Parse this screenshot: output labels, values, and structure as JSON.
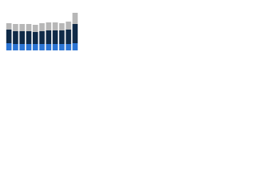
{
  "chart_data": {
    "type": "stacked_bar",
    "categories": [
      null,
      null,
      null,
      null,
      null,
      null,
      null,
      null,
      null,
      null,
      null
    ],
    "series": [
      {
        "color": "#2b74d3",
        "values": [
          9,
          8,
          8,
          8,
          8,
          8,
          8,
          8,
          8,
          8,
          9
        ]
      },
      {
        "color": "#0f2a47",
        "values": [
          17,
          16,
          16,
          16,
          15,
          16,
          17,
          17,
          17,
          18,
          24
        ]
      },
      {
        "color": "#b7b7b7",
        "values": [
          8,
          9,
          9,
          9,
          9,
          10,
          10,
          10,
          9,
          10,
          14
        ]
      }
    ],
    "ylim": [
      0,
      55
    ]
  }
}
